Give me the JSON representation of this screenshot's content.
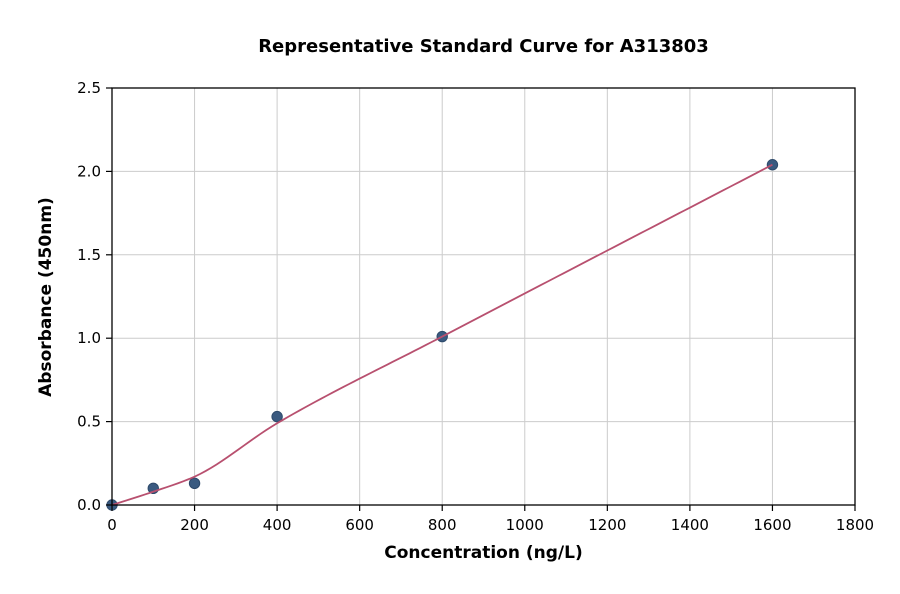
{
  "chart_data": {
    "type": "scatter",
    "title": "Representative Standard Curve for A313803",
    "xlabel": "Concentration (ng/L)",
    "ylabel": "Absorbance (450nm)",
    "xlim": [
      0,
      1800
    ],
    "ylim": [
      0,
      2.5
    ],
    "x_ticks": [
      0,
      200,
      400,
      600,
      800,
      1000,
      1200,
      1400,
      1600,
      1800
    ],
    "x_tick_labels": [
      "0",
      "200",
      "400",
      "600",
      "800",
      "1000",
      "1200",
      "1400",
      "1600",
      "1800"
    ],
    "y_ticks": [
      0,
      0.5,
      1.0,
      1.5,
      2.0,
      2.5
    ],
    "y_tick_labels": [
      "0.0",
      "0.5",
      "1.0",
      "1.5",
      "2.0",
      "2.5"
    ],
    "grid": true,
    "legend": "none",
    "series": [
      {
        "name": "standards-points",
        "type": "scatter",
        "color": "#3a5a80",
        "edge_color": "#2e4a6b",
        "x": [
          0,
          100,
          200,
          400,
          800,
          1600
        ],
        "y": [
          0.0,
          0.1,
          0.13,
          0.53,
          1.01,
          2.04
        ]
      },
      {
        "name": "fit-curve",
        "type": "line",
        "color": "#b8506f",
        "x": [
          0,
          100,
          200,
          400,
          800,
          1600
        ],
        "y": [
          0.0,
          0.08,
          0.17,
          0.49,
          1.01,
          2.04
        ]
      }
    ],
    "colors": {
      "grid": "#cccccc",
      "spine": "#000000",
      "background": "#ffffff",
      "text": "#000000"
    }
  }
}
